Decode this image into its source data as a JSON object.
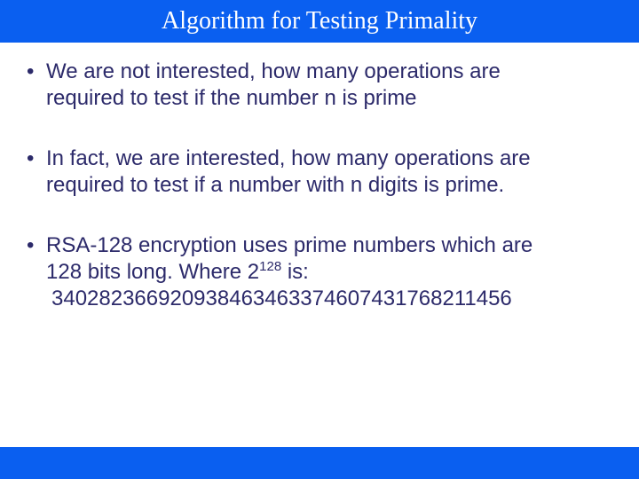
{
  "slide": {
    "title": "Algorithm for Testing Primality",
    "title_bar_color": "#0a5ff0",
    "title_text_color": "#ffffff",
    "title_font": "Times New Roman",
    "title_fontsize": 28,
    "body_text_color": "#2c2a6a",
    "body_fontsize": 24,
    "background_color": "#ffffff",
    "bottom_bar_color": "#0a5ff0",
    "bullets": [
      {
        "lines": [
          "We are not interested, how many operations are",
          "required to test if the number n is prime"
        ]
      },
      {
        "lines": [
          "In fact, we are interested, how many operations are",
          "required to test if a number with n digits is prime."
        ]
      },
      {
        "lines": [
          "RSA-128 encryption uses prime numbers which are",
          "128 bits long. Where 2",
          " is:"
        ],
        "superscript_after_line2": "128",
        "sub_line": "340282366920938463463374607431768211456"
      }
    ]
  }
}
